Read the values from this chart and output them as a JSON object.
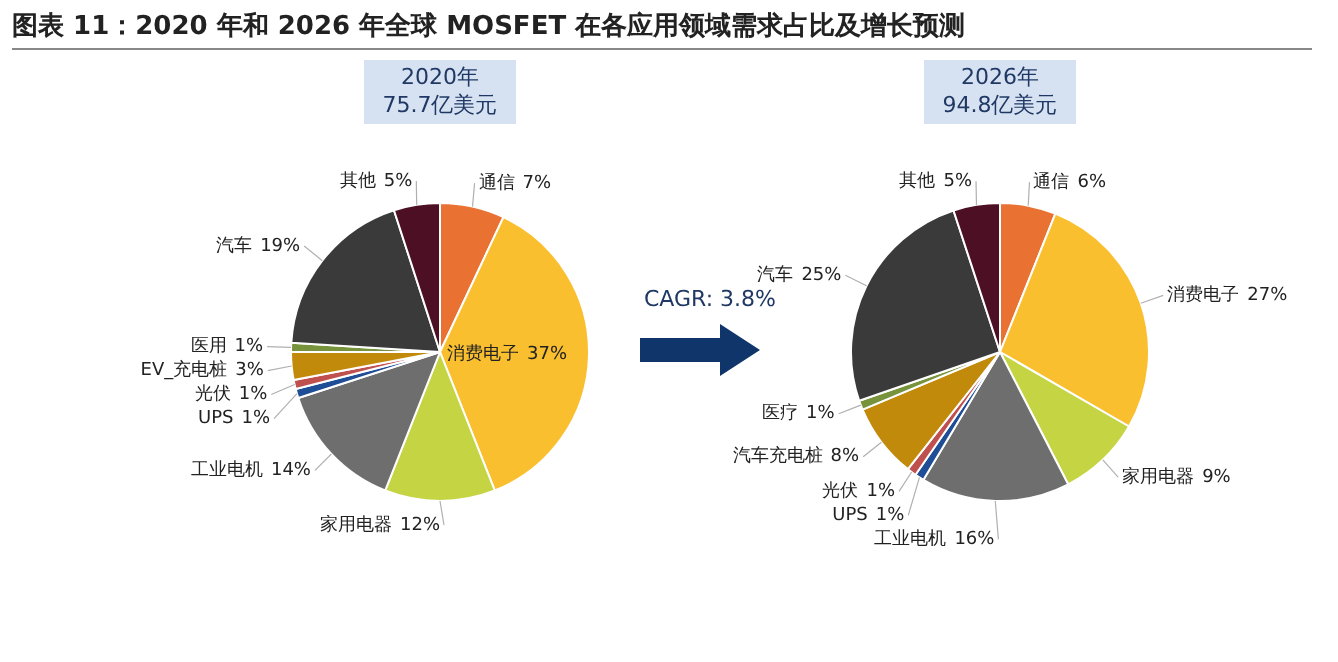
{
  "chart_data": [
    {
      "type": "pie",
      "title": "图表 11：2020 年和 2026 年全球 MOSFET 在各应用领域需求占比及增长预测",
      "subtitle": "2020年\n75.7亿美元",
      "legend": false,
      "value_labels": [
        "7%",
        "37%",
        "12%",
        "14%",
        "1%",
        "1%",
        "3%",
        "1%",
        "19%",
        "5%"
      ],
      "categories": [
        "通信",
        "消费电子",
        "家用电器",
        "工业电机",
        "UPS",
        "光伏",
        "EV_充电桩",
        "医用",
        "汽车",
        "其他"
      ],
      "values": [
        7,
        37,
        12,
        14,
        1,
        1,
        3,
        1,
        19,
        5
      ],
      "colors": [
        "#e97132",
        "#f9bf2f",
        "#c5d443",
        "#6e6e6e",
        "#1f4e96",
        "#c0504d",
        "#c28a0a",
        "#77933c",
        "#3a3a3a",
        "#4d0f24"
      ]
    },
    {
      "type": "pie",
      "subtitle": "2026年\n94.8亿美元",
      "legend": false,
      "value_labels": [
        "6%",
        "27%",
        "9%",
        "16%",
        "1%",
        "1%",
        "8%",
        "1%",
        "25%",
        "5%"
      ],
      "annotations": [
        "CAGR: 3.8%"
      ],
      "categories": [
        "通信",
        "消费电子",
        "家用电器",
        "工业电机",
        "UPS",
        "光伏",
        "汽车充电桩",
        "医疗",
        "汽车",
        "其他"
      ],
      "values": [
        6,
        27,
        9,
        16,
        1,
        1,
        8,
        1,
        25,
        5
      ],
      "colors": [
        "#e97132",
        "#f9bf2f",
        "#c5d443",
        "#6e6e6e",
        "#1f4e96",
        "#c0504d",
        "#c28a0a",
        "#77933c",
        "#3a3a3a",
        "#4d0f24"
      ]
    }
  ]
}
